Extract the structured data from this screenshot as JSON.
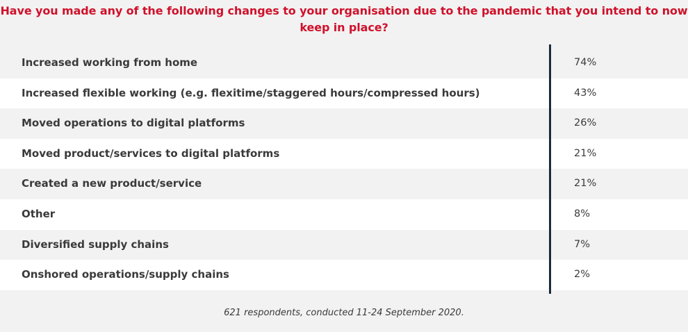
{
  "chart_data": {
    "type": "table",
    "title": "Have you made any of the following changes to your organisation due to the pandemic that you intend to now keep in place?",
    "categories": [
      "Increased working from home",
      "Increased flexible working (e.g. flexitime/staggered hours/compressed hours)",
      "Moved operations to digital platforms",
      "Moved product/services to digital platforms",
      "Created a new product/service",
      "Other",
      "Diversified supply chains",
      "Onshored operations/supply chains"
    ],
    "values": [
      74,
      43,
      26,
      21,
      21,
      8,
      7,
      2
    ],
    "value_labels": [
      "74%",
      "43%",
      "26%",
      "21%",
      "21%",
      "8%",
      "7%",
      "2%"
    ],
    "footnote": "621 respondents, conducted 11-24 September 2020.",
    "colors": {
      "title": "#d0112b",
      "text": "#3a3a3a",
      "axis_line": "#1c2a3a",
      "row_alt": "#ffffff",
      "background": "#f2f2f2"
    }
  }
}
